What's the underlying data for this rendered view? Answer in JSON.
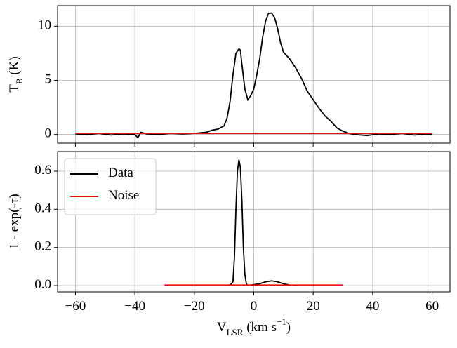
{
  "chart_data": [
    {
      "type": "line",
      "ylabel": "T_{B} (K)",
      "xlim": [
        -66,
        66
      ],
      "ylim": [
        -0.8,
        11.9
      ],
      "xticks": [
        -60,
        -40,
        -20,
        0,
        20,
        40,
        60
      ],
      "yticks": [
        0,
        5,
        10
      ],
      "grid": true,
      "series": [
        {
          "color": "#000000",
          "x": [
            -60,
            -56,
            -52,
            -48,
            -44,
            -40,
            -39,
            -38,
            -36,
            -32,
            -28,
            -24,
            -20,
            -16,
            -14,
            -12,
            -10,
            -9,
            -8,
            -7,
            -6,
            -5,
            -4.5,
            -4,
            -3,
            -2,
            -1,
            0,
            1,
            2,
            3,
            4,
            5,
            6,
            7,
            8,
            9,
            10,
            12,
            14,
            16,
            18,
            20,
            22,
            24,
            26,
            28,
            30,
            32,
            34,
            38,
            42,
            46,
            50,
            54,
            58,
            60
          ],
          "values": [
            0.05,
            0.0,
            0.1,
            -0.05,
            0.05,
            0.0,
            -0.3,
            0.2,
            0.05,
            0.0,
            0.1,
            0.05,
            0.1,
            0.2,
            0.4,
            0.5,
            0.8,
            1.5,
            3.0,
            5.5,
            7.5,
            7.9,
            7.8,
            6.5,
            4.2,
            3.2,
            3.6,
            4.2,
            5.5,
            7.0,
            9.0,
            10.5,
            11.2,
            11.2,
            10.8,
            9.8,
            8.5,
            7.6,
            7.0,
            6.2,
            5.2,
            4.0,
            3.2,
            2.4,
            1.7,
            1.2,
            0.6,
            0.3,
            0.1,
            0.0,
            -0.1,
            0.05,
            0.0,
            0.1,
            -0.05,
            0.05,
            0.0
          ]
        },
        {
          "color": "#e8110f",
          "x": [
            -60,
            60
          ],
          "values": [
            0.1,
            0.1
          ]
        }
      ]
    },
    {
      "type": "line",
      "ylabel": "1 - exp(-τ)",
      "xlabel": "V_{LSR} (km s^{−1})",
      "xlim": [
        -66,
        66
      ],
      "ylim": [
        -0.033,
        0.703
      ],
      "xticks": [
        {
          "value": -60,
          "label": "−60"
        },
        {
          "value": -40,
          "label": "−40"
        },
        {
          "value": -20,
          "label": "−20"
        },
        0,
        20,
        40,
        60
      ],
      "yticks": [
        {
          "value": 0,
          "label": "0.0"
        },
        0.2,
        0.4,
        0.6
      ],
      "grid": true,
      "legend": "upper left",
      "series": [
        {
          "name": "Data",
          "color": "#000000",
          "x": [
            -30,
            -20,
            -10,
            -8,
            -7,
            -6.5,
            -6,
            -5.5,
            -5,
            -4.5,
            -4,
            -3.5,
            -3,
            -2.5,
            -2,
            0,
            2,
            4,
            6,
            8,
            10,
            12,
            14,
            20,
            30
          ],
          "values": [
            0,
            0,
            0,
            0.002,
            0.02,
            0.15,
            0.4,
            0.6,
            0.66,
            0.62,
            0.45,
            0.2,
            0.06,
            0.01,
            0.0,
            0.005,
            0.01,
            0.02,
            0.025,
            0.02,
            0.01,
            0.003,
            0.0,
            0.0,
            0.0
          ]
        },
        {
          "name": "Noise",
          "color": "#e8110f",
          "x": [
            -30,
            30
          ],
          "values": [
            0.003,
            0.003
          ]
        }
      ]
    }
  ]
}
